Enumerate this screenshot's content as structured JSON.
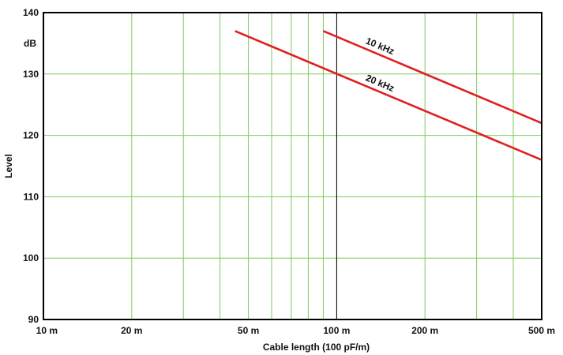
{
  "chart_data": {
    "type": "line",
    "x_scale": "log",
    "xlabel": "Cable length (100 pF/m)",
    "ylabel": "Level",
    "y_unit": "dB",
    "xlim": [
      10,
      500
    ],
    "ylim": [
      90,
      140
    ],
    "grid": true,
    "x_tick_labels": [
      {
        "value": 10,
        "label": "10 m"
      },
      {
        "value": 20,
        "label": "20 m"
      },
      {
        "value": 50,
        "label": "50 m"
      },
      {
        "value": 100,
        "label": "100 m"
      },
      {
        "value": 200,
        "label": "200 m"
      },
      {
        "value": 500,
        "label": "500 m"
      }
    ],
    "x_grid_values": [
      10,
      20,
      30,
      40,
      50,
      60,
      70,
      80,
      90,
      100,
      200,
      300,
      400,
      500
    ],
    "y_ticks": [
      90,
      100,
      110,
      120,
      130,
      140
    ],
    "series": [
      {
        "name": "10 kHz",
        "color": "#e02020",
        "x": [
          90,
          500
        ],
        "y": [
          137,
          122
        ]
      },
      {
        "name": "20 kHz",
        "color": "#e02020",
        "x": [
          45,
          500
        ],
        "y": [
          137,
          116
        ]
      }
    ],
    "colors": {
      "grid": "#7ccc5c",
      "axis": "#000000",
      "reference_line": "#000000"
    },
    "reference_line_x": 100
  }
}
